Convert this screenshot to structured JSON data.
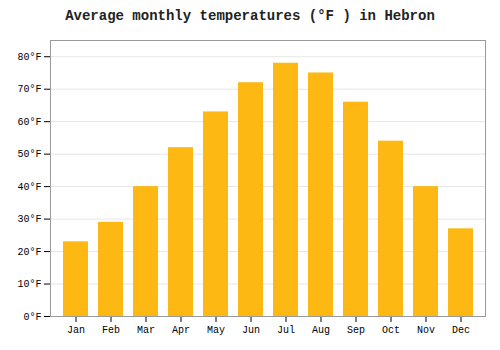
{
  "chart_data": {
    "type": "bar",
    "title": "Average monthly temperatures (°F ) in Hebron",
    "categories": [
      "Jan",
      "Feb",
      "Mar",
      "Apr",
      "May",
      "Jun",
      "Jul",
      "Aug",
      "Sep",
      "Oct",
      "Nov",
      "Dec"
    ],
    "values": [
      23,
      29,
      40,
      52,
      63,
      72,
      78,
      75,
      66,
      54,
      40,
      27
    ],
    "color": "#FDB813",
    "ylim": [
      0,
      85
    ],
    "yticks": [
      {
        "value": 0,
        "label": "0°F"
      },
      {
        "value": 10,
        "label": "10°F"
      },
      {
        "value": 20,
        "label": "20°F"
      },
      {
        "value": 30,
        "label": "30°F"
      },
      {
        "value": 40,
        "label": "40°F"
      },
      {
        "value": 50,
        "label": "50°F"
      },
      {
        "value": 60,
        "label": "60°F"
      },
      {
        "value": 70,
        "label": "70°F"
      },
      {
        "value": 80,
        "label": "80°F"
      }
    ],
    "grid": true
  }
}
